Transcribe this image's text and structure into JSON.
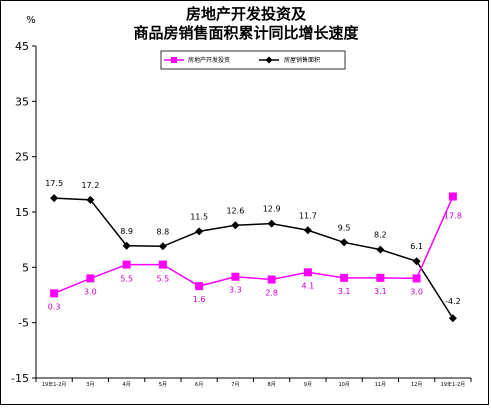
{
  "chart_data": {
    "type": "line",
    "title_lines": [
      "房地产开发投资及",
      "商品房销售面积累计同比增长速度"
    ],
    "unit": "%",
    "ylim": [
      -15,
      45
    ],
    "yticks": [
      -15,
      -5,
      5,
      15,
      25,
      35,
      45
    ],
    "categories": [
      "19年1-2月",
      "3月",
      "4月",
      "5月",
      "6月",
      "7月",
      "8月",
      "9月",
      "10月",
      "11月",
      "12月",
      "19年1-2月"
    ],
    "legend_position": "top-center",
    "series": [
      {
        "name": "房地产开发投资",
        "color": "#ff00ff",
        "marker": "square",
        "values": [
          0.3,
          3.0,
          5.5,
          5.5,
          1.6,
          3.3,
          2.8,
          4.1,
          3.1,
          3.1,
          3.0,
          17.8
        ],
        "labels": [
          "0.3",
          "3.0",
          "5.5",
          "5.5",
          "1.6",
          "3.3",
          "2.8",
          "4.1",
          "3.1",
          "3.1",
          "3.0",
          "17.8"
        ]
      },
      {
        "name": "房屋销售面积",
        "color": "#000000",
        "marker": "diamond",
        "values": [
          17.5,
          17.2,
          8.9,
          8.8,
          11.5,
          12.6,
          12.9,
          11.7,
          9.5,
          8.2,
          6.1,
          -4.2
        ],
        "labels": [
          "17.5",
          "17.2",
          "8.9",
          "8.8",
          "11.5",
          "12.6",
          "12.9",
          "11.7",
          "9.5",
          "8.2",
          "6.1",
          "-4.2"
        ]
      }
    ]
  }
}
